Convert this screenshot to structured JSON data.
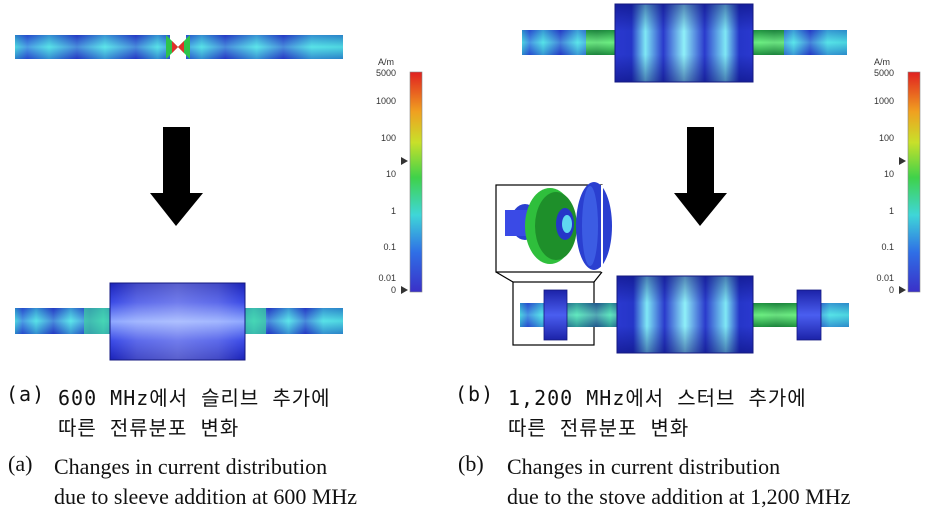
{
  "panel_a": {
    "caption_kr_label": "(a)",
    "caption_kr_line1": "600 MHz에서 슬리브 추가에",
    "caption_kr_line2": "따른 전류분포 변화",
    "caption_en_label": "(a)",
    "caption_en_line1": "Changes in current distribution",
    "caption_en_line2": "due to sleeve addition at 600 MHz"
  },
  "panel_b": {
    "caption_kr_label": "(b)",
    "caption_kr_line1": "1,200 MHz에서 스터브 추가에",
    "caption_kr_line2": "따른 전류분포 변화",
    "caption_en_label": "(b)",
    "caption_en_line1": "Changes in current distribution",
    "caption_en_line2": "due to the stove addition at 1,200 MHz"
  },
  "legend": {
    "unit": "A/m",
    "ticks": [
      "5000",
      "1000",
      "100",
      "10",
      "1",
      "0.1",
      "0.01",
      "0"
    ]
  },
  "colors": {
    "field_low": "#2a3fd0",
    "field_mid": "#3fd6c8",
    "field_green": "#35c23c",
    "arrow": "#000000"
  }
}
